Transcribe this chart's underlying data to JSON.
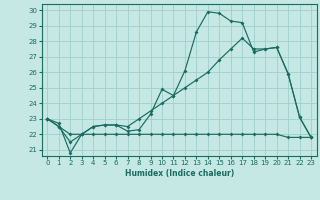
{
  "xlabel": "Humidex (Indice chaleur)",
  "bg_color": "#c5e8e4",
  "grid_color": "#9ecece",
  "line_color": "#1a6b60",
  "xlim": [
    -0.5,
    23.5
  ],
  "ylim": [
    20.6,
    30.4
  ],
  "x_ticks": [
    0,
    1,
    2,
    3,
    4,
    5,
    6,
    7,
    8,
    9,
    10,
    11,
    12,
    13,
    14,
    15,
    16,
    17,
    18,
    19,
    20,
    21,
    22,
    23
  ],
  "y_ticks": [
    21,
    22,
    23,
    24,
    25,
    26,
    27,
    28,
    29,
    30
  ],
  "line1_x": [
    0,
    1,
    2,
    3,
    4,
    5,
    6,
    7,
    8,
    9,
    10,
    11,
    12,
    13,
    14,
    15,
    16,
    17,
    18,
    19,
    20,
    21,
    22,
    23
  ],
  "line1_y": [
    23.0,
    22.7,
    20.8,
    22.0,
    22.5,
    22.6,
    22.6,
    22.2,
    22.3,
    23.3,
    24.9,
    24.5,
    26.1,
    28.6,
    29.9,
    29.8,
    29.3,
    29.2,
    27.3,
    27.5,
    27.6,
    25.9,
    23.1,
    21.8
  ],
  "line2_x": [
    0,
    1,
    2,
    3,
    4,
    5,
    6,
    7,
    8,
    9,
    10,
    11,
    12,
    13,
    14,
    15,
    16,
    17,
    18,
    19,
    20,
    21,
    22,
    23
  ],
  "line2_y": [
    23.0,
    22.5,
    21.5,
    22.0,
    22.5,
    22.6,
    22.6,
    22.5,
    23.0,
    23.5,
    24.0,
    24.5,
    25.0,
    25.5,
    26.0,
    26.8,
    27.5,
    28.2,
    27.5,
    27.5,
    27.6,
    25.9,
    23.1,
    21.8
  ],
  "line3_x": [
    0,
    1,
    2,
    3,
    4,
    5,
    6,
    7,
    8,
    9,
    10,
    11,
    12,
    13,
    14,
    15,
    16,
    17,
    18,
    19,
    20,
    21,
    22,
    23
  ],
  "line3_y": [
    23.0,
    22.5,
    22.0,
    22.0,
    22.0,
    22.0,
    22.0,
    22.0,
    22.0,
    22.0,
    22.0,
    22.0,
    22.0,
    22.0,
    22.0,
    22.0,
    22.0,
    22.0,
    22.0,
    22.0,
    22.0,
    21.8,
    21.8,
    21.8
  ]
}
